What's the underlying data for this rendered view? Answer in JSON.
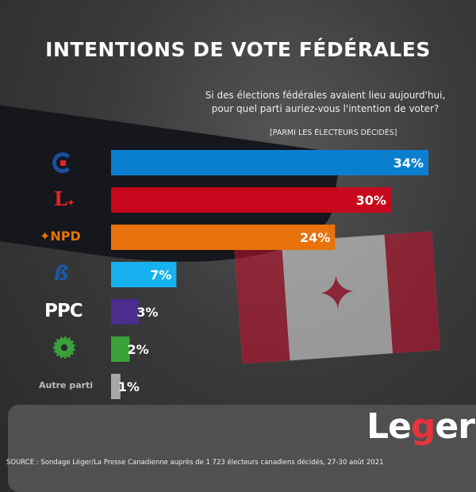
{
  "title": "INTENTIONS DE VOTE FÉDÉRALES",
  "question_line1": "Si des élections fédérales avaient lieu aujourd'hui,",
  "question_line2": "pour quel parti auriez-vous l'intention de voter?",
  "subtitle": "[PARMI LES ÉLECTEURS DÉCIDÉS]",
  "source": "SOURCE : Sondage Léger/La Presse Canadienne auprès de 1 723 électeurs canadiens décidés, 27-30 août 2021",
  "logo": "Léger",
  "party_logos": {
    "ndp": "NPD",
    "ppc": "PPC",
    "other": "Autre parti"
  },
  "chart_data": {
    "type": "bar",
    "orientation": "horizontal",
    "title": "INTENTIONS DE VOTE FÉDÉRALES",
    "categories": [
      "Conservateur",
      "Libéral",
      "NPD",
      "Bloc Québécois",
      "PPC",
      "Vert",
      "Autre parti"
    ],
    "values": [
      34,
      30,
      24,
      7,
      3,
      2,
      1
    ],
    "labels": [
      "34%",
      "30%",
      "24%",
      "7%",
      "3%",
      "2%",
      "1%"
    ],
    "colors": [
      "#0a7fd0",
      "#c8081c",
      "#e8720c",
      "#16b1ee",
      "#4a2d8c",
      "#3aa03a",
      "#a7a7a7"
    ],
    "xlim": [
      0,
      34
    ]
  }
}
